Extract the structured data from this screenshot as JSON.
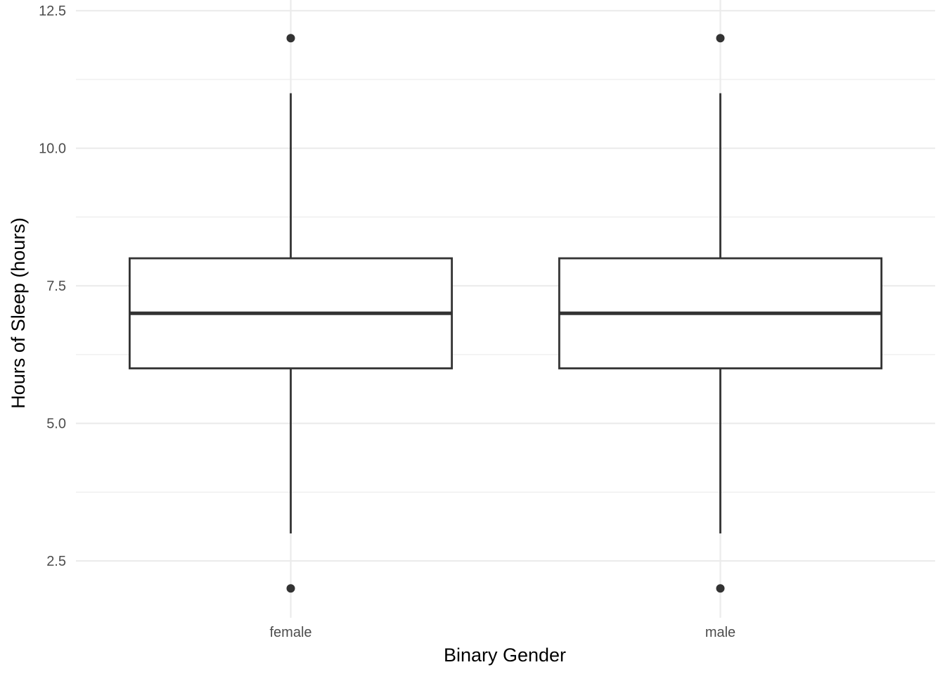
{
  "chart_data": {
    "type": "boxplot",
    "xlabel": "Binary Gender",
    "ylabel": "Hours of Sleep (hours)",
    "ylim": [
      1.1,
      12.7
    ],
    "yticks": [
      2.5,
      5.0,
      7.5,
      10.0,
      12.5
    ],
    "ytick_labels": [
      "2.5",
      "5.0",
      "7.5",
      "10.0",
      "12.5"
    ],
    "yminor": [
      3.75,
      6.25,
      8.75,
      11.25
    ],
    "grid": true,
    "categories": [
      "female",
      "male"
    ],
    "boxes": [
      {
        "category": "female",
        "whisker_low": 3,
        "q1": 6,
        "median": 7,
        "q3": 8,
        "whisker_high": 11,
        "outliers": [
          2,
          12
        ]
      },
      {
        "category": "male",
        "whisker_low": 3,
        "q1": 6,
        "median": 7,
        "q3": 8,
        "whisker_high": 11,
        "outliers": [
          2,
          12
        ]
      }
    ],
    "colors": {
      "box_stroke": "#333333",
      "box_fill": "#ffffff",
      "outlier": "#333333",
      "grid": "#ebebeb",
      "tick_text": "#4d4d4d",
      "title_text": "#000000"
    }
  }
}
